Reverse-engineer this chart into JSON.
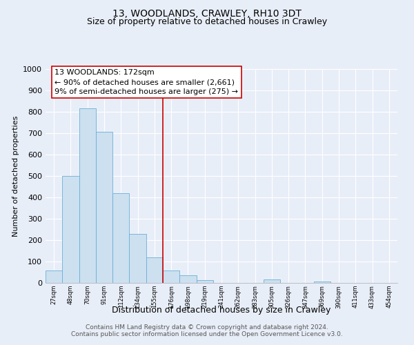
{
  "title": "13, WOODLANDS, CRAWLEY, RH10 3DT",
  "subtitle": "Size of property relative to detached houses in Crawley",
  "xlabel": "Distribution of detached houses by size in Crawley",
  "ylabel": "Number of detached properties",
  "bin_labels": [
    "27sqm",
    "48sqm",
    "70sqm",
    "91sqm",
    "112sqm",
    "134sqm",
    "155sqm",
    "176sqm",
    "198sqm",
    "219sqm",
    "241sqm",
    "262sqm",
    "283sqm",
    "305sqm",
    "326sqm",
    "347sqm",
    "369sqm",
    "390sqm",
    "411sqm",
    "433sqm",
    "454sqm"
  ],
  "bar_values": [
    57,
    500,
    815,
    707,
    420,
    228,
    118,
    57,
    35,
    13,
    0,
    0,
    0,
    15,
    0,
    0,
    8,
    0,
    0,
    0,
    0
  ],
  "bar_color": "#cce0f0",
  "bar_edge_color": "#6baed6",
  "vline_x_index": 7,
  "vline_color": "#cc0000",
  "annotation_text_line1": "13 WOODLANDS: 172sqm",
  "annotation_text_line2": "← 90% of detached houses are smaller (2,661)",
  "annotation_text_line3": "9% of semi-detached houses are larger (275) →",
  "ylim": [
    0,
    1000
  ],
  "yticks": [
    0,
    100,
    200,
    300,
    400,
    500,
    600,
    700,
    800,
    900,
    1000
  ],
  "footer_line1": "Contains HM Land Registry data © Crown copyright and database right 2024.",
  "footer_line2": "Contains public sector information licensed under the Open Government Licence v3.0.",
  "background_color": "#e8eef8",
  "plot_bg_color": "#e8eef8",
  "title_fontsize": 10,
  "subtitle_fontsize": 9
}
